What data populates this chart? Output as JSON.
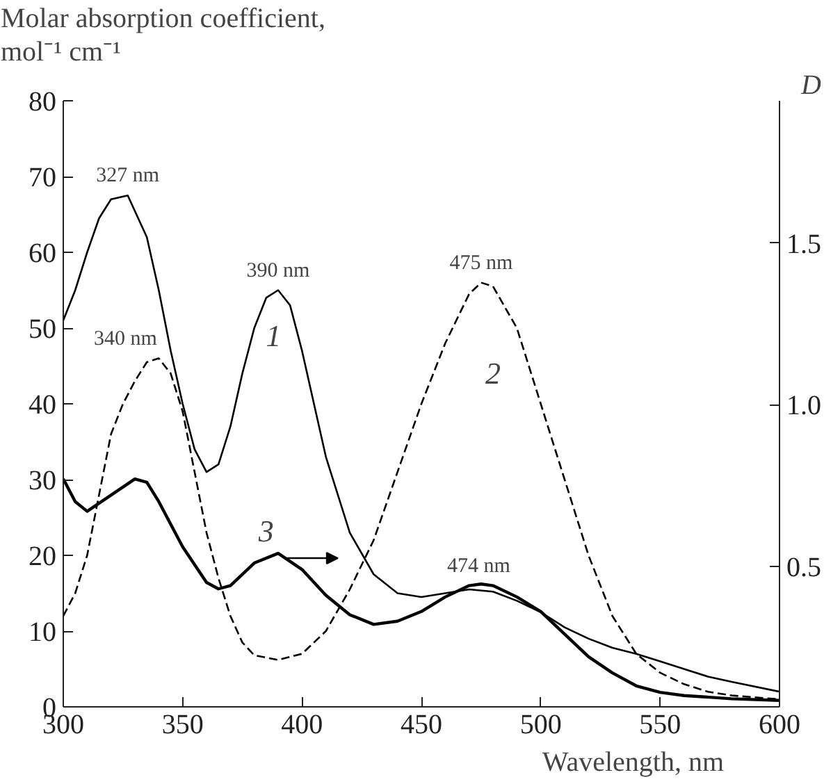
{
  "chart_data": {
    "type": "line",
    "xlabel": "Wavelength, nm",
    "ylabel": "Molar absorption coefficient,\nmol⁻¹ cm⁻¹",
    "y2label": "D",
    "xlim": [
      300,
      600
    ],
    "xticks": [
      300,
      350,
      400,
      450,
      500,
      550,
      600
    ],
    "ylim": [
      0,
      80
    ],
    "yticks": [
      0,
      10,
      20,
      30,
      40,
      50,
      60,
      70,
      80
    ],
    "y2lim": [
      0.065,
      1.94
    ],
    "y2ticks": [
      {
        "value": 0.5,
        "label": "0.5"
      },
      {
        "value": 1.0,
        "label": "1.0"
      },
      {
        "value": 1.5,
        "label": "1.5"
      }
    ],
    "grid": false,
    "marker": "none",
    "series": [
      {
        "name": "1",
        "color": "#000000",
        "line_style": "solid",
        "x": [
          300,
          305,
          310,
          315,
          320,
          327,
          335,
          340,
          345,
          350,
          355,
          360,
          365,
          370,
          375,
          380,
          385,
          390,
          395,
          400,
          405,
          410,
          420,
          430,
          440,
          450,
          460,
          470,
          480,
          490,
          500,
          510,
          520,
          530,
          540,
          550,
          560,
          570,
          580,
          600
        ],
        "values": [
          51,
          55,
          60,
          64.5,
          67,
          67.5,
          62,
          55,
          47,
          40,
          34,
          31,
          32,
          37,
          44,
          50,
          54,
          55,
          53,
          47,
          40,
          33,
          23,
          17.5,
          15,
          14.5,
          15,
          15.5,
          15.2,
          14,
          12.5,
          10.5,
          9,
          7.8,
          7,
          6,
          5,
          4,
          3.3,
          2
        ]
      },
      {
        "name": "2",
        "color": "#000000",
        "line_style": "dashed",
        "x": [
          300,
          305,
          310,
          315,
          320,
          325,
          330,
          335,
          340,
          345,
          350,
          355,
          360,
          365,
          370,
          375,
          380,
          390,
          400,
          410,
          420,
          430,
          440,
          450,
          460,
          470,
          475,
          480,
          490,
          500,
          510,
          520,
          530,
          540,
          550,
          560,
          570,
          580,
          600
        ],
        "values": [
          12,
          15,
          20,
          28,
          36,
          40,
          43,
          45.5,
          46,
          44,
          39,
          31,
          23,
          17,
          12,
          8.5,
          6.8,
          6.2,
          7,
          10,
          15.5,
          22,
          31,
          40,
          48,
          54.5,
          56,
          55.5,
          50,
          40,
          30,
          20,
          12,
          7,
          4.5,
          3,
          2,
          1.5,
          1
        ]
      },
      {
        "name": "3",
        "color": "#000000",
        "line_style": "solid",
        "axis": "y2",
        "x": [
          300,
          305,
          310,
          320,
          330,
          335,
          340,
          350,
          360,
          365,
          370,
          380,
          390,
          400,
          410,
          420,
          430,
          440,
          450,
          460,
          470,
          475,
          480,
          490,
          500,
          510,
          520,
          530,
          540,
          550,
          560,
          580,
          600
        ],
        "values": [
          0.77,
          0.7,
          0.67,
          0.72,
          0.77,
          0.76,
          0.7,
          0.56,
          0.45,
          0.43,
          0.44,
          0.51,
          0.54,
          0.49,
          0.41,
          0.35,
          0.32,
          0.33,
          0.36,
          0.405,
          0.44,
          0.445,
          0.44,
          0.405,
          0.36,
          0.29,
          0.22,
          0.17,
          0.13,
          0.11,
          0.1,
          0.09,
          0.085
        ]
      }
    ],
    "annotations": [
      {
        "text": "327 nm",
        "x": 327,
        "y": 67.5
      },
      {
        "text": "390 nm",
        "x": 390,
        "y": 55
      },
      {
        "text": "340 nm",
        "x": 340,
        "y": 46
      },
      {
        "text": "475 nm",
        "x": 475,
        "y": 56
      },
      {
        "text": "474 nm",
        "x": 474,
        "y": 16
      }
    ]
  }
}
